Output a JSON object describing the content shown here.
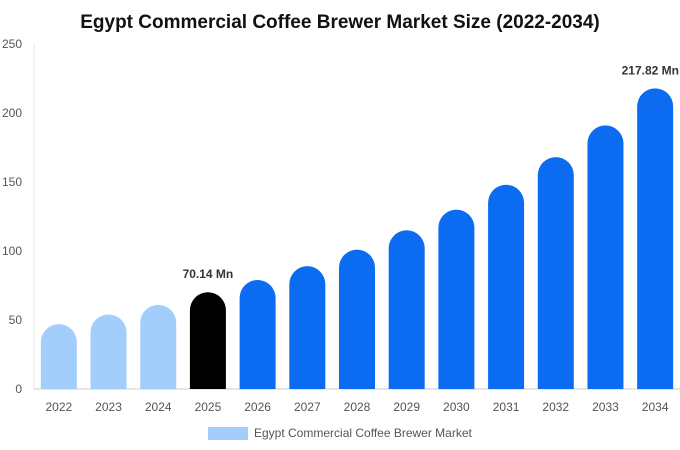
{
  "chart_data": {
    "type": "bar",
    "title": "Egypt Commercial Coffee Brewer Market Size (2022-2034)",
    "categories": [
      "2022",
      "2023",
      "2024",
      "2025",
      "2026",
      "2027",
      "2028",
      "2029",
      "2030",
      "2031",
      "2032",
      "2033",
      "2034"
    ],
    "series": [
      {
        "name": "Egypt Commercial Coffee Brewer Market",
        "values": [
          47,
          54,
          61,
          70.14,
          79,
          89,
          101,
          115,
          130,
          148,
          168,
          191,
          217.82
        ]
      }
    ],
    "data_labels": [
      {
        "category": "2025",
        "text": "70.14 Mn"
      },
      {
        "category": "2034",
        "text": "217.82 Mn"
      }
    ],
    "ylim": [
      0,
      250
    ],
    "yticks": [
      0,
      50,
      100,
      150,
      200,
      250
    ],
    "grid": false,
    "legend_position": "bottom",
    "colors": {
      "historical": "#a3cdfb",
      "base_year": "#000000",
      "forecast": "#0b6cf2"
    },
    "color_by_category": [
      "historical",
      "historical",
      "historical",
      "base_year",
      "forecast",
      "forecast",
      "forecast",
      "forecast",
      "forecast",
      "forecast",
      "forecast",
      "forecast",
      "forecast"
    ]
  }
}
